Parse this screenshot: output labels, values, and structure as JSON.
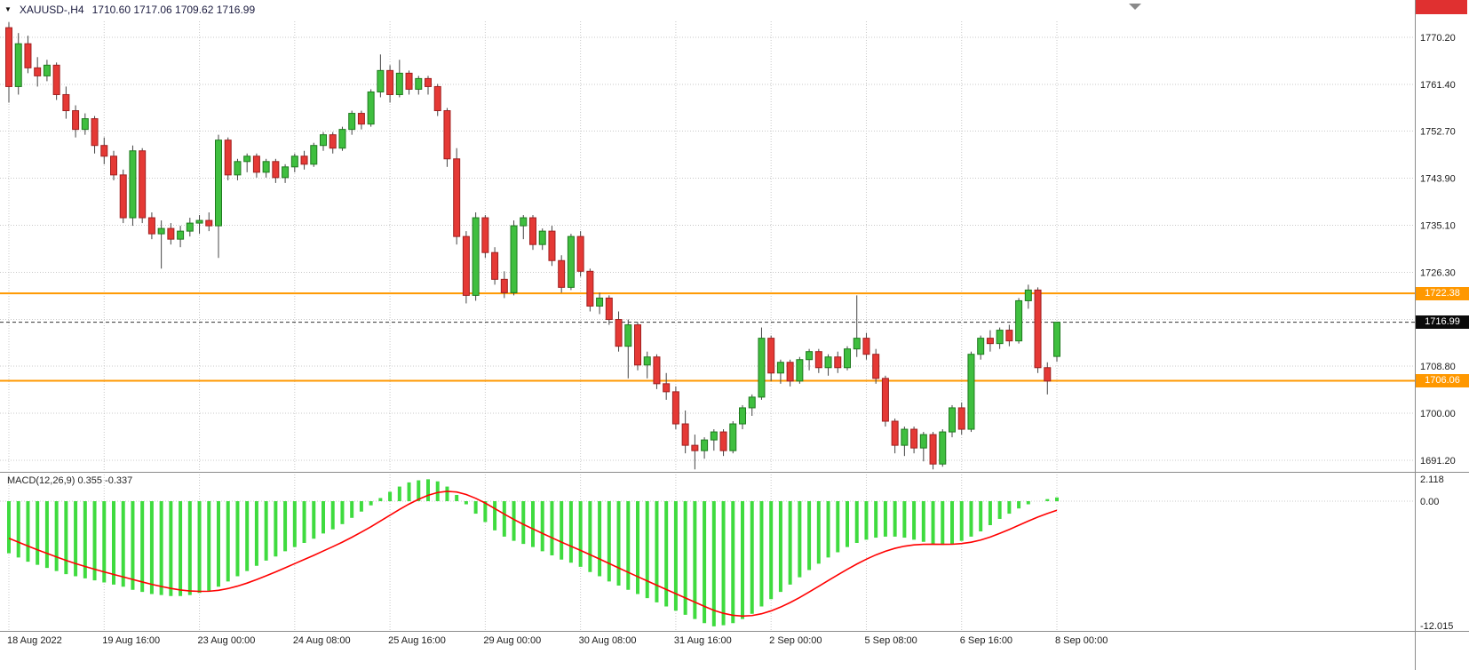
{
  "header": {
    "symbol_timeframe": "XAUUSD-,H4",
    "ohlc": "1710.60 1717.06 1709.62 1716.99",
    "dropdown_glyph": "▼"
  },
  "colors": {
    "bull": "#3FBF3F",
    "bull_border": "#1F7A1F",
    "bear": "#E53935",
    "bear_border": "#A02020",
    "wick": "#444444",
    "hist": "#3FDB3F",
    "signal": "#FF0000",
    "hline": "#FF9800",
    "grid": "#C8C8C8",
    "separator": "#8C8C8C",
    "current_line": "#333333",
    "axis_text": "#1a1a1a",
    "badge_text": "#FFFFFF"
  },
  "chart_data": {
    "type": "candlestick",
    "title": "XAUUSD- H4 candlestick chart with MACD(12,26,9)",
    "symbol": "XAUUSD-",
    "timeframe": "H4",
    "current": {
      "open": "1710.60",
      "high": "1717.06",
      "low": "1709.62",
      "close": "1716.99"
    },
    "x_axis": {
      "candle_count": 111,
      "labels": [
        {
          "index": 0,
          "label": "18 Aug 2022"
        },
        {
          "index": 10,
          "label": "19 Aug 16:00"
        },
        {
          "index": 20,
          "label": "23 Aug 00:00"
        },
        {
          "index": 30,
          "label": "24 Aug 08:00"
        },
        {
          "index": 40,
          "label": "25 Aug 16:00"
        },
        {
          "index": 50,
          "label": "29 Aug 00:00"
        },
        {
          "index": 60,
          "label": "30 Aug 08:00"
        },
        {
          "index": 70,
          "label": "31 Aug 16:00"
        },
        {
          "index": 80,
          "label": "2 Sep 00:00"
        },
        {
          "index": 90,
          "label": "5 Sep 08:00"
        },
        {
          "index": 100,
          "label": "6 Sep 16:00"
        },
        {
          "index": 110,
          "label": "8 Sep 00:00"
        }
      ]
    },
    "y_axis": {
      "min": 1689.0,
      "max": 1773.5,
      "grid_prices": [
        1770.2,
        1761.4,
        1752.7,
        1743.9,
        1735.1,
        1726.3,
        1717.5,
        1708.8,
        1700.0,
        1691.2
      ],
      "labels": [
        {
          "price": 1770.2,
          "text": "1770.20"
        },
        {
          "price": 1761.4,
          "text": "1761.40"
        },
        {
          "price": 1752.7,
          "text": "1752.70"
        },
        {
          "price": 1743.9,
          "text": "1743.90"
        },
        {
          "price": 1735.1,
          "text": "1735.10"
        },
        {
          "price": 1726.3,
          "text": "1726.30"
        },
        {
          "price": 1708.8,
          "text": "1708.80"
        },
        {
          "price": 1700.0,
          "text": "1700.00"
        },
        {
          "price": 1691.2,
          "text": "1691.20"
        }
      ]
    },
    "candles": [
      [
        1772.0,
        1773.0,
        1758.0,
        1761.0
      ],
      [
        1761.0,
        1771.0,
        1759.5,
        1769.0
      ],
      [
        1769.0,
        1770.5,
        1763.5,
        1764.5
      ],
      [
        1764.5,
        1766.5,
        1761.0,
        1763.0
      ],
      [
        1763.0,
        1766.0,
        1762.0,
        1765.0
      ],
      [
        1765.0,
        1765.5,
        1758.5,
        1759.5
      ],
      [
        1759.5,
        1761.0,
        1755.0,
        1756.5
      ],
      [
        1756.5,
        1757.5,
        1751.5,
        1753.0
      ],
      [
        1753.0,
        1756.0,
        1752.0,
        1755.0
      ],
      [
        1755.0,
        1755.5,
        1748.5,
        1750.0
      ],
      [
        1750.0,
        1751.5,
        1746.5,
        1748.0
      ],
      [
        1748.0,
        1749.0,
        1743.5,
        1744.5
      ],
      [
        1744.5,
        1745.5,
        1735.5,
        1736.5
      ],
      [
        1736.5,
        1750.0,
        1735.0,
        1749.0
      ],
      [
        1749.0,
        1749.5,
        1735.5,
        1736.5
      ],
      [
        1736.5,
        1737.5,
        1732.5,
        1733.5
      ],
      [
        1733.5,
        1736.0,
        1727.0,
        1734.5
      ],
      [
        1734.5,
        1735.5,
        1731.5,
        1732.5
      ],
      [
        1732.5,
        1735.0,
        1731.0,
        1734.0
      ],
      [
        1734.0,
        1736.5,
        1733.0,
        1735.5
      ],
      [
        1735.5,
        1737.0,
        1733.5,
        1736.0
      ],
      [
        1736.0,
        1737.5,
        1734.0,
        1735.0
      ],
      [
        1735.0,
        1752.0,
        1729.0,
        1751.0
      ],
      [
        1751.0,
        1751.5,
        1743.5,
        1744.5
      ],
      [
        1744.5,
        1747.5,
        1743.5,
        1747.0
      ],
      [
        1747.0,
        1748.5,
        1745.0,
        1748.0
      ],
      [
        1748.0,
        1748.5,
        1744.0,
        1745.0
      ],
      [
        1745.0,
        1747.5,
        1744.0,
        1747.0
      ],
      [
        1747.0,
        1747.5,
        1743.0,
        1744.0
      ],
      [
        1744.0,
        1746.5,
        1743.0,
        1746.0
      ],
      [
        1746.0,
        1748.5,
        1745.0,
        1748.0
      ],
      [
        1748.0,
        1749.0,
        1745.5,
        1746.5
      ],
      [
        1746.5,
        1750.5,
        1746.0,
        1750.0
      ],
      [
        1750.0,
        1752.5,
        1749.0,
        1752.0
      ],
      [
        1752.0,
        1752.5,
        1748.5,
        1749.5
      ],
      [
        1749.5,
        1753.5,
        1749.0,
        1753.0
      ],
      [
        1753.0,
        1756.5,
        1752.0,
        1756.0
      ],
      [
        1756.0,
        1756.5,
        1753.0,
        1754.0
      ],
      [
        1754.0,
        1760.5,
        1753.5,
        1760.0
      ],
      [
        1760.0,
        1767.0,
        1759.0,
        1764.0
      ],
      [
        1764.0,
        1765.0,
        1758.0,
        1759.5
      ],
      [
        1759.5,
        1766.0,
        1759.0,
        1763.5
      ],
      [
        1763.5,
        1764.0,
        1759.5,
        1760.5
      ],
      [
        1760.5,
        1763.0,
        1759.5,
        1762.5
      ],
      [
        1762.5,
        1763.0,
        1759.5,
        1761.0
      ],
      [
        1761.0,
        1761.5,
        1755.5,
        1756.5
      ],
      [
        1756.5,
        1757.0,
        1746.0,
        1747.5
      ],
      [
        1747.5,
        1749.5,
        1731.5,
        1733.0
      ],
      [
        1733.0,
        1734.0,
        1720.5,
        1722.0
      ],
      [
        1722.0,
        1737.5,
        1721.0,
        1736.5
      ],
      [
        1736.5,
        1737.0,
        1729.0,
        1730.0
      ],
      [
        1730.0,
        1731.0,
        1724.0,
        1725.0
      ],
      [
        1725.0,
        1726.5,
        1721.5,
        1722.5
      ],
      [
        1722.5,
        1736.0,
        1722.0,
        1735.0
      ],
      [
        1735.0,
        1737.0,
        1732.5,
        1736.5
      ],
      [
        1736.5,
        1737.0,
        1730.5,
        1731.5
      ],
      [
        1731.5,
        1734.5,
        1730.5,
        1734.0
      ],
      [
        1734.0,
        1735.0,
        1727.5,
        1728.5
      ],
      [
        1728.5,
        1729.5,
        1722.5,
        1723.5
      ],
      [
        1723.5,
        1733.5,
        1723.0,
        1733.0
      ],
      [
        1733.0,
        1734.0,
        1725.5,
        1726.5
      ],
      [
        1726.5,
        1727.0,
        1719.0,
        1720.0
      ],
      [
        1720.0,
        1722.5,
        1718.5,
        1721.5
      ],
      [
        1721.5,
        1722.0,
        1716.5,
        1717.5
      ],
      [
        1717.5,
        1719.0,
        1711.5,
        1712.5
      ],
      [
        1712.5,
        1717.5,
        1706.5,
        1716.5
      ],
      [
        1716.5,
        1717.0,
        1708.0,
        1709.0
      ],
      [
        1709.0,
        1711.5,
        1706.5,
        1710.5
      ],
      [
        1710.5,
        1711.0,
        1704.5,
        1705.5
      ],
      [
        1705.5,
        1707.5,
        1702.5,
        1704.0
      ],
      [
        1704.0,
        1705.0,
        1697.0,
        1698.0
      ],
      [
        1698.0,
        1700.5,
        1692.5,
        1694.0
      ],
      [
        1694.0,
        1696.0,
        1689.5,
        1693.0
      ],
      [
        1693.0,
        1695.5,
        1691.5,
        1695.0
      ],
      [
        1695.0,
        1697.0,
        1693.0,
        1696.5
      ],
      [
        1696.5,
        1697.0,
        1692.0,
        1693.0
      ],
      [
        1693.0,
        1698.5,
        1692.5,
        1698.0
      ],
      [
        1698.0,
        1701.5,
        1697.0,
        1701.0
      ],
      [
        1701.0,
        1703.5,
        1699.5,
        1703.0
      ],
      [
        1703.0,
        1716.0,
        1702.5,
        1714.0
      ],
      [
        1714.0,
        1714.5,
        1706.0,
        1707.5
      ],
      [
        1707.5,
        1710.0,
        1705.5,
        1709.5
      ],
      [
        1709.5,
        1710.0,
        1705.0,
        1706.0
      ],
      [
        1706.0,
        1710.5,
        1705.5,
        1710.0
      ],
      [
        1710.0,
        1712.0,
        1708.0,
        1711.5
      ],
      [
        1711.5,
        1712.0,
        1707.5,
        1708.5
      ],
      [
        1708.5,
        1711.0,
        1707.0,
        1710.5
      ],
      [
        1710.5,
        1711.5,
        1707.5,
        1708.5
      ],
      [
        1708.5,
        1712.5,
        1708.0,
        1712.0
      ],
      [
        1712.0,
        1722.0,
        1710.5,
        1714.0
      ],
      [
        1714.0,
        1715.0,
        1710.0,
        1711.0
      ],
      [
        1711.0,
        1712.0,
        1705.5,
        1706.5
      ],
      [
        1706.5,
        1707.0,
        1697.5,
        1698.5
      ],
      [
        1698.5,
        1699.0,
        1692.5,
        1694.0
      ],
      [
        1694.0,
        1697.5,
        1692.0,
        1697.0
      ],
      [
        1697.0,
        1697.5,
        1692.5,
        1693.5
      ],
      [
        1693.5,
        1696.5,
        1691.0,
        1696.0
      ],
      [
        1696.0,
        1696.5,
        1689.5,
        1690.5
      ],
      [
        1690.5,
        1697.0,
        1690.0,
        1696.5
      ],
      [
        1696.5,
        1701.5,
        1695.5,
        1701.0
      ],
      [
        1701.0,
        1702.0,
        1696.0,
        1697.0
      ],
      [
        1697.0,
        1711.5,
        1696.5,
        1711.0
      ],
      [
        1711.0,
        1714.5,
        1710.0,
        1714.0
      ],
      [
        1714.0,
        1715.5,
        1711.5,
        1713.0
      ],
      [
        1713.0,
        1716.0,
        1712.0,
        1715.5
      ],
      [
        1715.5,
        1716.5,
        1712.5,
        1713.5
      ],
      [
        1713.5,
        1721.5,
        1713.0,
        1721.0
      ],
      [
        1721.0,
        1724.0,
        1719.5,
        1723.0
      ],
      [
        1723.0,
        1723.5,
        1707.5,
        1708.5
      ],
      [
        1708.5,
        1709.5,
        1703.5,
        1706.0
      ],
      [
        1710.6,
        1717.06,
        1709.62,
        1716.99
      ]
    ],
    "hlines": [
      {
        "price": 1722.38,
        "label": "1722.38"
      },
      {
        "price": 1706.06,
        "label": "1706.06"
      }
    ],
    "current_price": {
      "price": 1716.99,
      "label": "1716.99"
    },
    "macd": {
      "label": "MACD(12,26,9) 0.355 -0.337",
      "params": "12,26,9",
      "main_value": 0.355,
      "signal_value": -0.337,
      "range": [
        -12.015,
        2.118
      ],
      "y_labels": [
        {
          "value": 2.118,
          "text": "2.118"
        },
        {
          "value": 0,
          "text": "0.00"
        },
        {
          "value": -12.015,
          "text": "-12.015"
        }
      ],
      "values": [
        -5.0,
        -5.4,
        -5.8,
        -6.1,
        -6.4,
        -6.7,
        -7.0,
        -7.2,
        -7.4,
        -7.6,
        -7.8,
        -8.0,
        -8.2,
        -8.5,
        -8.7,
        -8.9,
        -9.0,
        -9.1,
        -9.1,
        -9.0,
        -8.8,
        -8.6,
        -8.2,
        -7.7,
        -7.2,
        -6.7,
        -6.2,
        -5.7,
        -5.3,
        -4.8,
        -4.4,
        -4.0,
        -3.6,
        -3.1,
        -2.7,
        -2.2,
        -1.6,
        -1.0,
        -0.4,
        0.3,
        0.9,
        1.4,
        1.8,
        2.0,
        2.1,
        1.9,
        1.4,
        0.6,
        -0.3,
        -1.2,
        -2.0,
        -2.8,
        -3.4,
        -3.8,
        -4.1,
        -4.4,
        -4.8,
        -5.2,
        -5.6,
        -5.9,
        -6.3,
        -6.8,
        -7.2,
        -7.7,
        -8.1,
        -8.5,
        -8.9,
        -9.3,
        -9.7,
        -10.1,
        -10.5,
        -10.9,
        -11.3,
        -11.7,
        -12.0,
        -11.9,
        -11.7,
        -11.3,
        -10.8,
        -10.1,
        -9.4,
        -8.7,
        -8.0,
        -7.3,
        -6.6,
        -6.0,
        -5.4,
        -4.9,
        -4.4,
        -4.0,
        -3.7,
        -3.5,
        -3.4,
        -3.4,
        -3.5,
        -3.7,
        -3.9,
        -4.1,
        -4.2,
        -4.1,
        -3.8,
        -3.4,
        -2.9,
        -2.3,
        -1.7,
        -1.2,
        -0.7,
        -0.3,
        0.0,
        0.2,
        0.355
      ],
      "signal_ema_k": 0.2,
      "signal_start": -3.2
    }
  }
}
